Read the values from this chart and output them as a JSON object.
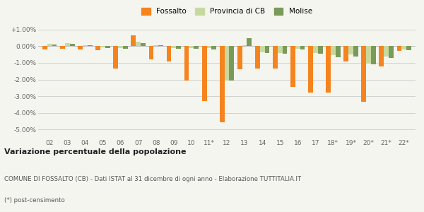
{
  "categories": [
    "02",
    "03",
    "04",
    "05",
    "06",
    "07",
    "08",
    "09",
    "10",
    "11*",
    "12",
    "13",
    "14",
    "15",
    "16",
    "17",
    "18*",
    "19*",
    "20*",
    "21*",
    "22*"
  ],
  "fossalto": [
    -0.2,
    -0.15,
    -0.2,
    -0.25,
    -1.35,
    0.65,
    -0.8,
    -0.9,
    -2.05,
    -3.3,
    -4.55,
    -1.4,
    -1.35,
    -1.35,
    -2.45,
    -2.8,
    -2.8,
    -0.9,
    -3.35,
    -1.2,
    -0.3
  ],
  "provincia_cb": [
    0.15,
    0.2,
    0.05,
    -0.05,
    -0.1,
    0.25,
    0.05,
    -0.1,
    -0.1,
    -0.1,
    -2.05,
    0.05,
    -0.35,
    -0.4,
    -0.15,
    -0.4,
    -0.55,
    -0.5,
    -1.05,
    -0.6,
    -0.2
  ],
  "molise": [
    0.1,
    0.15,
    0.05,
    -0.1,
    -0.15,
    0.2,
    0.05,
    -0.15,
    -0.15,
    -0.2,
    -2.05,
    0.5,
    -0.4,
    -0.45,
    -0.2,
    -0.45,
    -0.65,
    -0.6,
    -1.1,
    -0.7,
    -0.25
  ],
  "fossalto_color": "#f5841f",
  "provincia_cb_color": "#c8d9a0",
  "molise_color": "#7a9a5a",
  "title_bold": "Variazione percentuale della popolazione",
  "subtitle": "COMUNE DI FOSSALTO (CB) - Dati ISTAT al 31 dicembre di ogni anno - Elaborazione TUTTITALIA.IT",
  "footnote": "(*) post-censimento",
  "ylim": [
    -5.5,
    1.5
  ],
  "ytick_vals": [
    -5.0,
    -4.0,
    -3.0,
    -2.0,
    -1.0,
    0.0,
    1.0
  ],
  "ytick_labels": [
    "-5.00%",
    "-4.00%",
    "-3.00%",
    "-2.00%",
    "-1.00%",
    "0.00%",
    "+1.00%"
  ],
  "background_color": "#f5f5f0",
  "bar_width": 0.27
}
